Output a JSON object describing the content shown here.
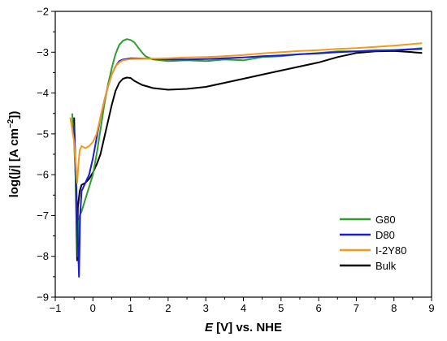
{
  "chart_data": {
    "type": "line",
    "xlabel_italic": "E",
    "xlabel_rest": " [V] vs. NHE",
    "ylabel_prefix": "log(|",
    "ylabel_italic": "j",
    "ylabel_mid": "| [A cm",
    "ylabel_sup": "−2",
    "ylabel_suffix": "])",
    "xlim": [
      -1,
      9
    ],
    "ylim": [
      -9,
      -2
    ],
    "x_ticks": [
      "−1",
      "0",
      "1",
      "2",
      "3",
      "4",
      "5",
      "6",
      "7",
      "8",
      "9"
    ],
    "y_ticks": [
      "−9",
      "−8",
      "−7",
      "−6",
      "−5",
      "−4",
      "−3",
      "−2"
    ],
    "legend_position": "lower-right",
    "series": [
      {
        "name": "G80",
        "color": "#2e9e2e",
        "points": [
          [
            -0.55,
            -4.5
          ],
          [
            -0.5,
            -5.2
          ],
          [
            -0.45,
            -6.3
          ],
          [
            -0.4,
            -8.0
          ],
          [
            -0.38,
            -7.2
          ],
          [
            -0.35,
            -7.0
          ],
          [
            -0.3,
            -6.9
          ],
          [
            -0.2,
            -6.6
          ],
          [
            -0.1,
            -6.3
          ],
          [
            0.0,
            -6.0
          ],
          [
            0.1,
            -5.5
          ],
          [
            0.2,
            -4.9
          ],
          [
            0.3,
            -4.3
          ],
          [
            0.4,
            -3.8
          ],
          [
            0.5,
            -3.4
          ],
          [
            0.6,
            -3.05
          ],
          [
            0.7,
            -2.82
          ],
          [
            0.8,
            -2.72
          ],
          [
            0.9,
            -2.68
          ],
          [
            1.0,
            -2.7
          ],
          [
            1.1,
            -2.76
          ],
          [
            1.2,
            -2.88
          ],
          [
            1.3,
            -3.0
          ],
          [
            1.4,
            -3.1
          ],
          [
            1.6,
            -3.18
          ],
          [
            2.0,
            -3.22
          ],
          [
            2.5,
            -3.2
          ],
          [
            3.0,
            -3.22
          ],
          [
            3.5,
            -3.18
          ],
          [
            4.0,
            -3.2
          ],
          [
            4.5,
            -3.12
          ],
          [
            5.0,
            -3.1
          ],
          [
            5.5,
            -3.05
          ],
          [
            6.0,
            -3.02
          ],
          [
            6.5,
            -2.98
          ],
          [
            7.0,
            -2.98
          ],
          [
            7.5,
            -2.95
          ],
          [
            8.0,
            -2.95
          ],
          [
            8.5,
            -2.92
          ],
          [
            8.75,
            -2.9
          ]
        ]
      },
      {
        "name": "D80",
        "color": "#1a1adb",
        "points": [
          [
            -0.5,
            -4.8
          ],
          [
            -0.45,
            -6.0
          ],
          [
            -0.4,
            -7.6
          ],
          [
            -0.37,
            -8.5
          ],
          [
            -0.34,
            -7.0
          ],
          [
            -0.3,
            -6.4
          ],
          [
            -0.2,
            -6.2
          ],
          [
            -0.1,
            -6.0
          ],
          [
            0.0,
            -5.6
          ],
          [
            0.1,
            -5.1
          ],
          [
            0.2,
            -4.6
          ],
          [
            0.3,
            -4.2
          ],
          [
            0.4,
            -3.85
          ],
          [
            0.5,
            -3.55
          ],
          [
            0.6,
            -3.35
          ],
          [
            0.7,
            -3.22
          ],
          [
            0.8,
            -3.18
          ],
          [
            1.0,
            -3.15
          ],
          [
            1.5,
            -3.16
          ],
          [
            2.0,
            -3.18
          ],
          [
            2.5,
            -3.18
          ],
          [
            3.0,
            -3.17
          ],
          [
            3.5,
            -3.15
          ],
          [
            4.0,
            -3.13
          ],
          [
            4.5,
            -3.1
          ],
          [
            5.0,
            -3.08
          ],
          [
            5.5,
            -3.05
          ],
          [
            6.0,
            -3.03
          ],
          [
            6.5,
            -3.0
          ],
          [
            7.0,
            -2.98
          ],
          [
            7.5,
            -2.97
          ],
          [
            8.0,
            -2.95
          ],
          [
            8.5,
            -2.93
          ],
          [
            8.75,
            -2.92
          ]
        ]
      },
      {
        "name": "I-2Y80",
        "color": "#f39a1e",
        "points": [
          [
            -0.6,
            -4.6
          ],
          [
            -0.5,
            -5.2
          ],
          [
            -0.45,
            -5.8
          ],
          [
            -0.42,
            -6.2
          ],
          [
            -0.38,
            -5.7
          ],
          [
            -0.35,
            -5.4
          ],
          [
            -0.3,
            -5.3
          ],
          [
            -0.2,
            -5.35
          ],
          [
            -0.1,
            -5.3
          ],
          [
            0.0,
            -5.2
          ],
          [
            0.1,
            -5.0
          ],
          [
            0.2,
            -4.6
          ],
          [
            0.3,
            -4.2
          ],
          [
            0.4,
            -3.85
          ],
          [
            0.5,
            -3.55
          ],
          [
            0.6,
            -3.35
          ],
          [
            0.7,
            -3.25
          ],
          [
            0.8,
            -3.2
          ],
          [
            1.0,
            -3.17
          ],
          [
            1.5,
            -3.16
          ],
          [
            2.0,
            -3.15
          ],
          [
            2.5,
            -3.13
          ],
          [
            3.0,
            -3.12
          ],
          [
            3.5,
            -3.1
          ],
          [
            4.0,
            -3.07
          ],
          [
            4.5,
            -3.03
          ],
          [
            5.0,
            -3.0
          ],
          [
            5.5,
            -2.97
          ],
          [
            6.0,
            -2.95
          ],
          [
            6.5,
            -2.92
          ],
          [
            7.0,
            -2.9
          ],
          [
            7.5,
            -2.87
          ],
          [
            8.0,
            -2.84
          ],
          [
            8.5,
            -2.8
          ],
          [
            8.75,
            -2.78
          ]
        ]
      },
      {
        "name": "Bulk",
        "color": "#000000",
        "points": [
          [
            -0.5,
            -4.6
          ],
          [
            -0.47,
            -5.6
          ],
          [
            -0.45,
            -6.6
          ],
          [
            -0.42,
            -8.1
          ],
          [
            -0.4,
            -6.8
          ],
          [
            -0.35,
            -6.4
          ],
          [
            -0.3,
            -6.25
          ],
          [
            -0.2,
            -6.2
          ],
          [
            -0.1,
            -6.1
          ],
          [
            0.0,
            -5.95
          ],
          [
            0.1,
            -5.75
          ],
          [
            0.2,
            -5.5
          ],
          [
            0.3,
            -5.1
          ],
          [
            0.4,
            -4.7
          ],
          [
            0.5,
            -4.3
          ],
          [
            0.6,
            -3.95
          ],
          [
            0.7,
            -3.75
          ],
          [
            0.8,
            -3.65
          ],
          [
            0.9,
            -3.62
          ],
          [
            1.0,
            -3.63
          ],
          [
            1.1,
            -3.7
          ],
          [
            1.3,
            -3.8
          ],
          [
            1.6,
            -3.88
          ],
          [
            2.0,
            -3.92
          ],
          [
            2.5,
            -3.9
          ],
          [
            3.0,
            -3.85
          ],
          [
            3.5,
            -3.75
          ],
          [
            4.0,
            -3.65
          ],
          [
            4.5,
            -3.55
          ],
          [
            5.0,
            -3.45
          ],
          [
            5.5,
            -3.35
          ],
          [
            6.0,
            -3.25
          ],
          [
            6.5,
            -3.12
          ],
          [
            7.0,
            -3.02
          ],
          [
            7.5,
            -2.98
          ],
          [
            8.0,
            -2.97
          ],
          [
            8.5,
            -3.0
          ],
          [
            8.75,
            -3.02
          ]
        ]
      }
    ]
  }
}
